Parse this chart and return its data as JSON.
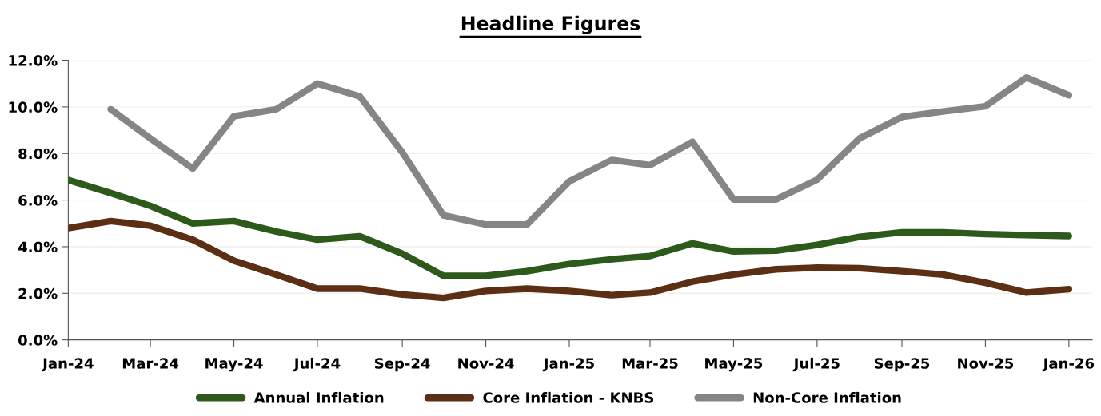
{
  "chart_data": {
    "type": "line",
    "title": "Headline Figures",
    "x": [
      "2024-01",
      "2024-02",
      "2024-03",
      "2024-04",
      "2024-05",
      "2024-06",
      "2024-07",
      "2024-08",
      "2024-09",
      "2024-10",
      "2024-11",
      "2024-12",
      "2025-01",
      "2025-02",
      "2025-03",
      "2025-04",
      "2025-05",
      "2025-06",
      "2025-07",
      "2025-08",
      "2025-09",
      "2025-10",
      "2025-11",
      "2025-12",
      "2026-01"
    ],
    "series": [
      {
        "name": "Annual Inflation",
        "color": "#2d5a1b",
        "values": [
          6.86,
          6.3,
          5.75,
          5.0,
          5.1,
          4.65,
          4.3,
          4.45,
          3.7,
          2.75,
          2.75,
          2.95,
          3.26,
          3.46,
          3.6,
          4.14,
          3.8,
          3.83,
          4.08,
          4.42,
          4.62,
          4.62,
          4.54,
          4.5,
          4.46
        ]
      },
      {
        "name": "Core Inflation - KNBS",
        "color": "#5c2e14",
        "values": [
          4.8,
          5.1,
          4.9,
          4.3,
          3.4,
          2.8,
          2.2,
          2.2,
          1.95,
          1.8,
          2.1,
          2.2,
          2.1,
          1.92,
          2.03,
          2.5,
          2.8,
          3.03,
          3.1,
          3.08,
          2.95,
          2.8,
          2.45,
          2.03,
          2.18
        ]
      },
      {
        "name": "Non-Core Inflation",
        "color": "#858585",
        "values": [
          null,
          9.9,
          8.65,
          7.35,
          9.6,
          9.9,
          11.0,
          10.45,
          8.05,
          5.35,
          4.95,
          4.95,
          6.8,
          7.72,
          7.5,
          8.5,
          6.03,
          6.03,
          6.88,
          8.65,
          9.57,
          9.8,
          10.03,
          11.26,
          10.5
        ]
      }
    ],
    "xlim": [
      "2024-01-01",
      "2026-01-18"
    ],
    "xticks": [
      {
        "value": "2024-01",
        "label": "Jan-24"
      },
      {
        "value": "2024-03",
        "label": "Mar-24"
      },
      {
        "value": "2024-05",
        "label": "May-24"
      },
      {
        "value": "2024-07",
        "label": "Jul-24"
      },
      {
        "value": "2024-09",
        "label": "Sep-24"
      },
      {
        "value": "2024-11",
        "label": "Nov-24"
      },
      {
        "value": "2025-01",
        "label": "Jan-25"
      },
      {
        "value": "2025-03",
        "label": "Mar-25"
      },
      {
        "value": "2025-05",
        "label": "May-25"
      },
      {
        "value": "2025-07",
        "label": "Jul-25"
      },
      {
        "value": "2025-09",
        "label": "Sep-25"
      },
      {
        "value": "2025-11",
        "label": "Nov-25"
      },
      {
        "value": "2026-01",
        "label": "Jan-26"
      }
    ],
    "ylim": [
      0,
      12
    ],
    "yticks": [
      {
        "value": 0,
        "label": "0.0%"
      },
      {
        "value": 2,
        "label": "2.0%"
      },
      {
        "value": 4,
        "label": "4.0%"
      },
      {
        "value": 6,
        "label": "6.0%"
      },
      {
        "value": 8,
        "label": "8.0%"
      },
      {
        "value": 10,
        "label": "10.0%"
      },
      {
        "value": 12,
        "label": "12.0%"
      }
    ],
    "grid": "y",
    "legend": "bottom",
    "marker": "none",
    "line_style": "solid"
  }
}
